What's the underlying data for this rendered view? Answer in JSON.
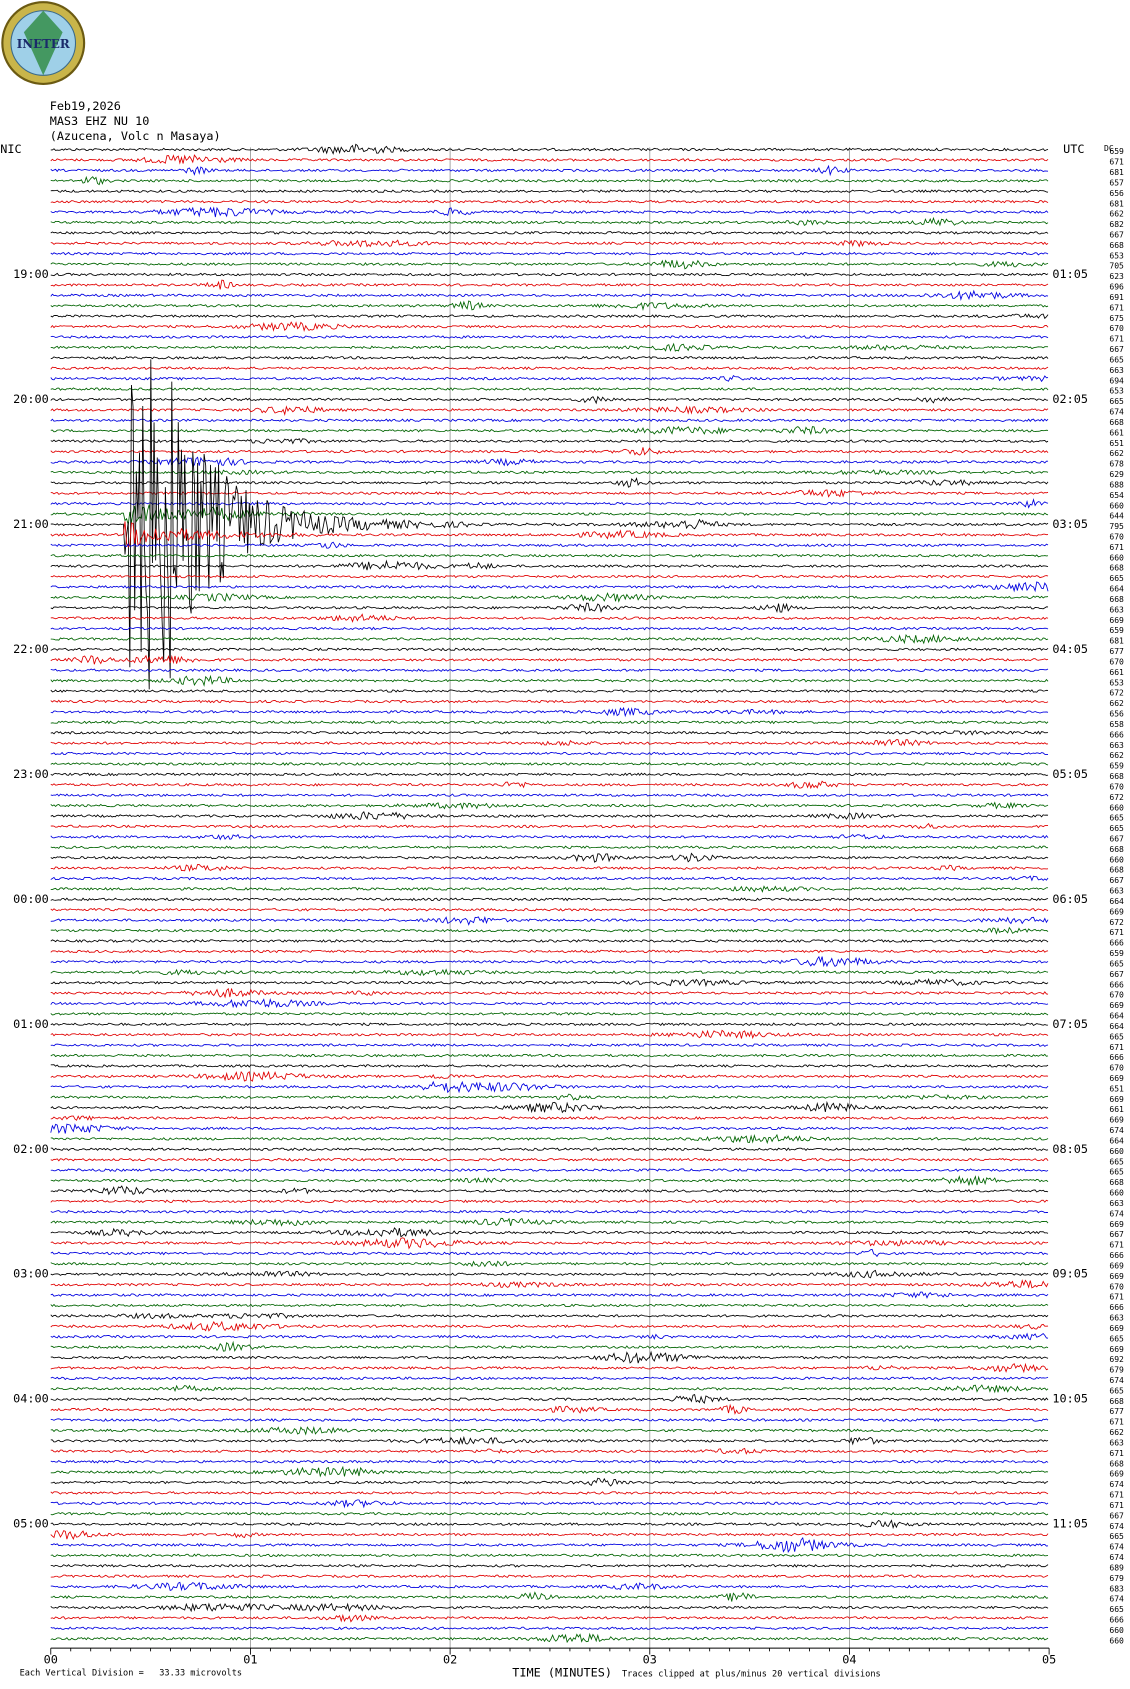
{
  "header": {
    "logo_text": "INETER",
    "date": "Feb19,2026",
    "station": "MAS3 EHZ NU 10",
    "location": "(Azucena, Volc n Masaya)"
  },
  "left_labels": [
    "NIC",
    "19:00",
    "20:00",
    "21:00",
    "22:00",
    "23:00",
    "00:00",
    "01:00",
    "02:00",
    "03:00",
    "04:00",
    "05:00"
  ],
  "right_labels": [
    "UTC",
    "01:05",
    "02:05",
    "03:05",
    "04:05",
    "05:05",
    "06:05",
    "07:05",
    "08:05",
    "09:05",
    "10:05",
    "11:05"
  ],
  "dc_label": "DC",
  "dc_values": [
    "659",
    "671",
    "681",
    "657",
    "656",
    "681",
    "662",
    "682",
    "667",
    "668",
    "653",
    "705",
    "623",
    "696",
    "691",
    "671",
    "675",
    "670",
    "671",
    "667",
    "665",
    "663",
    "694",
    "653",
    "665",
    "674",
    "668",
    "661",
    "651",
    "662",
    "678",
    "629",
    "688",
    "654",
    "660",
    "644",
    "795",
    "670",
    "671",
    "660",
    "668",
    "665",
    "664",
    "668",
    "663",
    "669",
    "659",
    "681",
    "677",
    "670",
    "661",
    "653",
    "672",
    "662",
    "656",
    "658",
    "666",
    "663",
    "662",
    "659",
    "668",
    "670",
    "672",
    "660",
    "665",
    "665",
    "667",
    "668",
    "660",
    "668",
    "667",
    "663",
    "664",
    "669",
    "672",
    "671",
    "666",
    "659",
    "665",
    "667",
    "666",
    "670",
    "669",
    "664",
    "664",
    "665",
    "671",
    "666",
    "670",
    "669",
    "651",
    "669",
    "661",
    "669",
    "674",
    "664",
    "660",
    "665",
    "665",
    "668",
    "660",
    "663",
    "674",
    "669",
    "667",
    "671",
    "666",
    "669",
    "669",
    "670",
    "671",
    "666",
    "663",
    "669",
    "665",
    "669",
    "692",
    "679",
    "674",
    "665",
    "668",
    "677",
    "671",
    "662",
    "663",
    "671",
    "668",
    "669",
    "674",
    "671",
    "671",
    "667",
    "674",
    "665",
    "674",
    "674",
    "689",
    "679",
    "683",
    "674",
    "665",
    "666",
    "660",
    "660"
  ],
  "x_axis": {
    "ticks": [
      "00",
      "01",
      "02",
      "03",
      "04",
      "05"
    ],
    "title": "TIME (MINUTES)"
  },
  "footer": {
    "scale_note": "Each Vertical Division =   33.33 microvolts",
    "clip_note": "Traces clipped at plus/minus 20 vertical divisions"
  }
}
